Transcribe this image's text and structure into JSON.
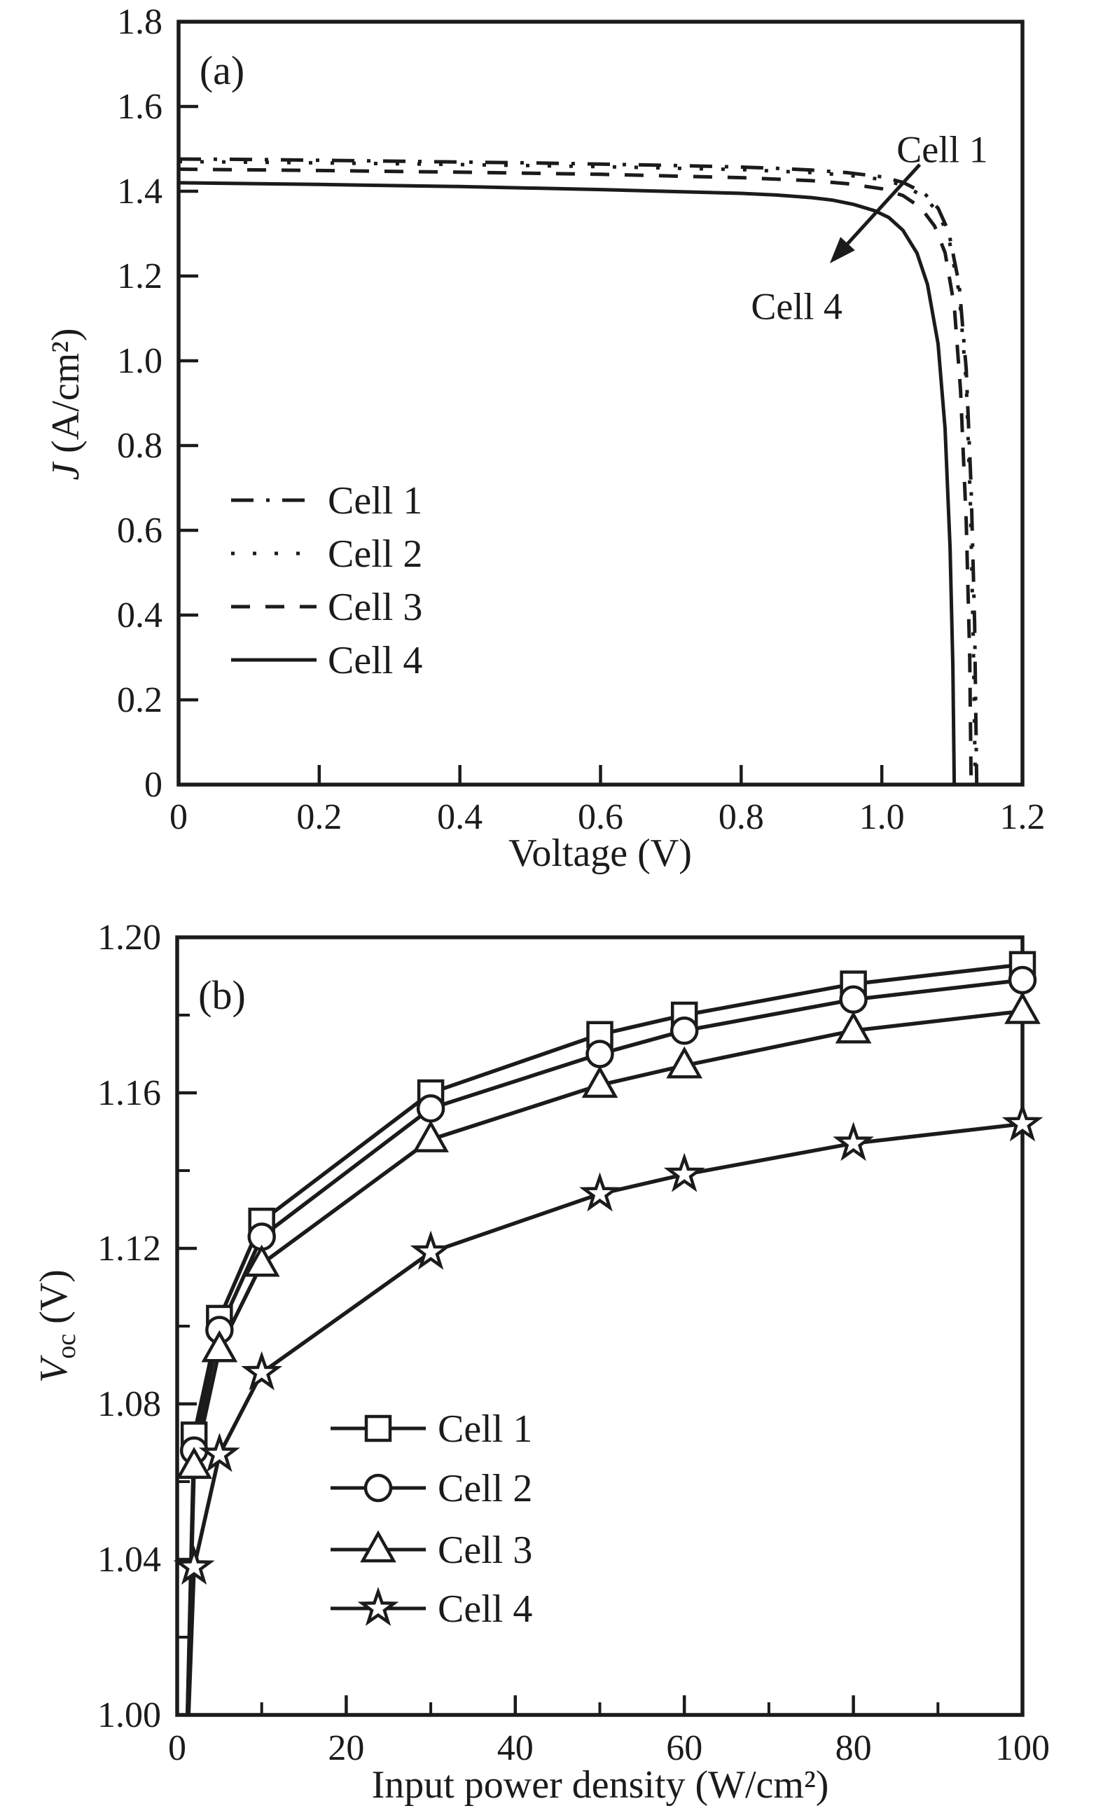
{
  "figure": {
    "background": "#ffffff",
    "ink_color": "#1b1b1b"
  },
  "chart_data": [
    {
      "panel": "a",
      "type": "line",
      "panel_label": "(a)",
      "xlabel": "Voltage (V)",
      "ylabel": {
        "italic": "J",
        "rest": " (A/cm²)"
      },
      "xlim": [
        0,
        1.2
      ],
      "ylim": [
        0,
        1.8
      ],
      "xticks": [
        0,
        0.2,
        0.4,
        0.6,
        0.8,
        1.0,
        1.2
      ],
      "yticks": [
        0,
        0.2,
        0.4,
        0.6,
        0.8,
        1.0,
        1.2,
        1.4,
        1.6,
        1.8
      ],
      "grid": false,
      "legend_position": "center-left",
      "series": [
        {
          "name": "Cell 1",
          "line_style": "dash-dot",
          "points": [
            [
              0,
              1.476
            ],
            [
              0.1,
              1.475
            ],
            [
              0.2,
              1.473
            ],
            [
              0.3,
              1.471
            ],
            [
              0.4,
              1.469
            ],
            [
              0.5,
              1.467
            ],
            [
              0.6,
              1.464
            ],
            [
              0.7,
              1.461
            ],
            [
              0.8,
              1.457
            ],
            [
              0.85,
              1.454
            ],
            [
              0.9,
              1.45
            ],
            [
              0.95,
              1.444
            ],
            [
              1.0,
              1.434
            ],
            [
              1.03,
              1.421
            ],
            [
              1.06,
              1.396
            ],
            [
              1.08,
              1.36
            ],
            [
              1.095,
              1.305
            ],
            [
              1.11,
              1.18
            ],
            [
              1.12,
              0.98
            ],
            [
              1.127,
              0.7
            ],
            [
              1.132,
              0.38
            ],
            [
              1.135,
              0.0
            ]
          ]
        },
        {
          "name": "Cell 2",
          "line_style": "dotted",
          "points": [
            [
              0,
              1.47
            ],
            [
              0.2,
              1.467
            ],
            [
              0.4,
              1.463
            ],
            [
              0.6,
              1.458
            ],
            [
              0.8,
              1.451
            ],
            [
              0.9,
              1.444
            ],
            [
              0.95,
              1.438
            ],
            [
              1.0,
              1.428
            ],
            [
              1.03,
              1.414
            ],
            [
              1.06,
              1.388
            ],
            [
              1.08,
              1.35
            ],
            [
              1.095,
              1.292
            ],
            [
              1.11,
              1.16
            ],
            [
              1.12,
              0.95
            ],
            [
              1.126,
              0.66
            ],
            [
              1.13,
              0.35
            ],
            [
              1.133,
              0.0
            ]
          ]
        },
        {
          "name": "Cell 3",
          "line_style": "dashed",
          "points": [
            [
              0,
              1.452
            ],
            [
              0.2,
              1.449
            ],
            [
              0.4,
              1.445
            ],
            [
              0.6,
              1.44
            ],
            [
              0.8,
              1.432
            ],
            [
              0.9,
              1.425
            ],
            [
              0.95,
              1.418
            ],
            [
              1.0,
              1.406
            ],
            [
              1.03,
              1.39
            ],
            [
              1.055,
              1.362
            ],
            [
              1.075,
              1.318
            ],
            [
              1.09,
              1.255
            ],
            [
              1.103,
              1.13
            ],
            [
              1.112,
              0.93
            ],
            [
              1.12,
              0.62
            ],
            [
              1.125,
              0.3
            ],
            [
              1.127,
              0.0
            ]
          ]
        },
        {
          "name": "Cell 4",
          "line_style": "solid",
          "points": [
            [
              0,
              1.42
            ],
            [
              0.2,
              1.416
            ],
            [
              0.4,
              1.411
            ],
            [
              0.6,
              1.404
            ],
            [
              0.8,
              1.395
            ],
            [
              0.85,
              1.391
            ],
            [
              0.9,
              1.385
            ],
            [
              0.93,
              1.379
            ],
            [
              0.96,
              1.369
            ],
            [
              0.99,
              1.354
            ],
            [
              1.01,
              1.338
            ],
            [
              1.03,
              1.308
            ],
            [
              1.05,
              1.254
            ],
            [
              1.065,
              1.18
            ],
            [
              1.08,
              1.04
            ],
            [
              1.09,
              0.84
            ],
            [
              1.097,
              0.56
            ],
            [
              1.101,
              0.28
            ],
            [
              1.103,
              0.0
            ]
          ]
        }
      ],
      "annotation": {
        "top_label": "Cell 1",
        "top_label_pos": [
          1.086,
          1.469
        ],
        "bottom_label": "Cell 4",
        "bottom_label_pos": [
          0.879,
          1.098
        ],
        "arrow_from": [
          1.054,
          1.463
        ],
        "arrow_to": [
          0.926,
          1.23
        ]
      }
    },
    {
      "panel": "b",
      "type": "line-marker",
      "panel_label": "(b)",
      "xlabel": "Input power density (W/cm²)",
      "ylabel": {
        "italic": "V",
        "sub": "oc",
        "rest": " (V)"
      },
      "xlim": [
        0,
        100
      ],
      "ylim": [
        1.0,
        1.2
      ],
      "xticks_major": [
        0,
        20,
        40,
        60,
        80,
        100
      ],
      "xticks_minor": [
        10,
        30,
        50,
        70,
        90
      ],
      "yticks_major": [
        1.0,
        1.04,
        1.08,
        1.12,
        1.16,
        1.2
      ],
      "yticks_minor": [
        1.02,
        1.06,
        1.1,
        1.14,
        1.18
      ],
      "grid": false,
      "legend_position": "center",
      "x_values": [
        2,
        5,
        10,
        30,
        50,
        60,
        80,
        100
      ],
      "lead_point": {
        "x": 1,
        "y": 0.98
      },
      "series": [
        {
          "name": "Cell 1",
          "marker": "square",
          "y_values": [
            1.072,
            1.102,
            1.127,
            1.16,
            1.175,
            1.18,
            1.188,
            1.193
          ]
        },
        {
          "name": "Cell 2",
          "marker": "circle",
          "y_values": [
            1.068,
            1.099,
            1.123,
            1.156,
            1.17,
            1.176,
            1.184,
            1.189
          ]
        },
        {
          "name": "Cell 3",
          "marker": "triangle",
          "y_values": [
            1.064,
            1.094,
            1.116,
            1.148,
            1.162,
            1.167,
            1.176,
            1.181
          ]
        },
        {
          "name": "Cell 4",
          "marker": "star",
          "y_values": [
            1.038,
            1.067,
            1.088,
            1.119,
            1.134,
            1.139,
            1.147,
            1.152
          ]
        }
      ]
    }
  ]
}
